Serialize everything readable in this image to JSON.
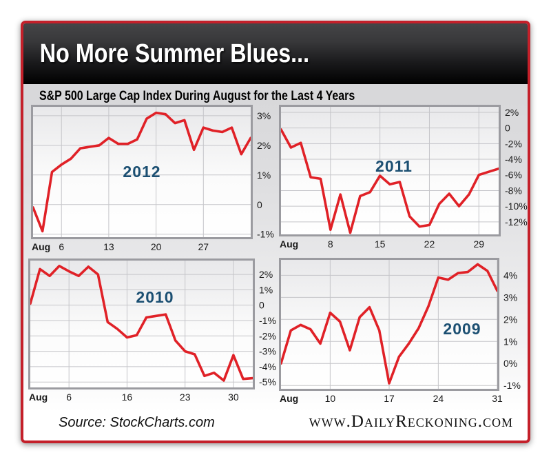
{
  "header": {
    "title": "No More Summer Blues..."
  },
  "subtitle": "S&P 500 Large Cap Index During August for the Last 4 Years",
  "footer": {
    "source_label": "Source: StockCharts.com",
    "site_label": "www.DailyReckoning.com"
  },
  "colors": {
    "accent_red": "#c4202a",
    "line_red": "#e02127",
    "year_label_blue": "#1b4f72",
    "grid": "#c5c5c9",
    "box_border": "#9b9ba0",
    "header_text": "#ffffff"
  },
  "chart_data": [
    {
      "type": "line",
      "title": "2012",
      "x_month_label": "Aug",
      "xticks": [
        {
          "label": "6",
          "index": 3
        },
        {
          "label": "13",
          "index": 8
        },
        {
          "label": "20",
          "index": 13
        },
        {
          "label": "27",
          "index": 18
        }
      ],
      "yticks": [
        {
          "label": "3%",
          "value": 3
        },
        {
          "label": "2%",
          "value": 2
        },
        {
          "label": "1%",
          "value": 1
        },
        {
          "label": "0",
          "value": 0
        },
        {
          "label": "-1%",
          "value": -1
        }
      ],
      "y_top": 3.3,
      "y_bottom": -1.1,
      "grid": true,
      "axis_side": "right",
      "values": [
        -0.1,
        -0.9,
        1.1,
        1.35,
        1.55,
        1.9,
        1.95,
        2.0,
        2.25,
        2.05,
        2.05,
        2.2,
        2.9,
        3.1,
        3.05,
        2.75,
        2.85,
        1.85,
        2.6,
        2.5,
        2.45,
        2.6,
        1.7,
        2.25
      ],
      "year_label_pos": {
        "x": 0.5,
        "y": 0.49
      }
    },
    {
      "type": "line",
      "title": "2011",
      "x_month_label": "Aug",
      "xticks": [
        {
          "label": "8",
          "index": 5
        },
        {
          "label": "15",
          "index": 10
        },
        {
          "label": "22",
          "index": 15
        },
        {
          "label": "29",
          "index": 20
        }
      ],
      "yticks": [
        {
          "label": "2%",
          "value": 2
        },
        {
          "label": "0",
          "value": 0
        },
        {
          "label": "-2%",
          "value": -2
        },
        {
          "label": "-4%",
          "value": -4
        },
        {
          "label": "-6%",
          "value": -6
        },
        {
          "label": "-8%",
          "value": -8
        },
        {
          "label": "-10%",
          "value": -10
        },
        {
          "label": "-12%",
          "value": -12
        }
      ],
      "y_top": 2.7,
      "y_bottom": -13.6,
      "grid": true,
      "axis_side": "right",
      "values": [
        -0.2,
        -2.5,
        -1.9,
        -6.3,
        -6.5,
        -13.0,
        -8.5,
        -13.4,
        -8.7,
        -8.2,
        -6.1,
        -7.2,
        -6.9,
        -11.3,
        -12.6,
        -12.4,
        -9.7,
        -8.4,
        -10.0,
        -8.5,
        -6.0,
        -5.6,
        -5.2
      ],
      "year_label_pos": {
        "x": 0.52,
        "y": 0.46
      }
    },
    {
      "type": "line",
      "title": "2010",
      "x_month_label": "Aug",
      "xticks": [
        {
          "label": "6",
          "index": 4
        },
        {
          "label": "16",
          "index": 10
        },
        {
          "label": "23",
          "index": 16
        },
        {
          "label": "30",
          "index": 21
        }
      ],
      "yticks": [
        {
          "label": "2%",
          "value": 2
        },
        {
          "label": "1%",
          "value": 1
        },
        {
          "label": "0",
          "value": 0
        },
        {
          "label": "-1%",
          "value": -1
        },
        {
          "label": "-2%",
          "value": -2
        },
        {
          "label": "-3%",
          "value": -3
        },
        {
          "label": "-4%",
          "value": -4
        },
        {
          "label": "-5%",
          "value": -5
        }
      ],
      "y_top": 2.9,
      "y_bottom": -5.35,
      "grid": true,
      "axis_side": "right",
      "values": [
        0.1,
        2.35,
        1.9,
        2.55,
        2.2,
        1.9,
        2.5,
        2.0,
        -1.1,
        -1.55,
        -2.1,
        -1.95,
        -0.8,
        -0.7,
        -0.6,
        -2.3,
        -3.0,
        -3.2,
        -4.6,
        -4.4,
        -4.9,
        -3.25,
        -4.8,
        -4.75
      ],
      "year_label_pos": {
        "x": 0.56,
        "y": 0.29
      }
    },
    {
      "type": "line",
      "title": "2009",
      "x_month_label": "Aug",
      "xticks": [
        {
          "label": "10",
          "index": 5
        },
        {
          "label": "17",
          "index": 11
        },
        {
          "label": "24",
          "index": 16
        },
        {
          "label": "31",
          "index": 22
        }
      ],
      "yticks": [
        {
          "label": "4%",
          "value": 4
        },
        {
          "label": "3%",
          "value": 3
        },
        {
          "label": "2%",
          "value": 2
        },
        {
          "label": "1%",
          "value": 1
        },
        {
          "label": "0%",
          "value": 0
        },
        {
          "label": "-1%",
          "value": -1
        }
      ],
      "y_top": 4.7,
      "y_bottom": -1.15,
      "grid": true,
      "axis_side": "right",
      "values": [
        0.0,
        1.5,
        1.75,
        1.55,
        0.9,
        2.3,
        1.9,
        0.6,
        2.1,
        2.55,
        1.5,
        -0.9,
        0.3,
        0.9,
        1.6,
        2.6,
        3.9,
        3.8,
        4.1,
        4.15,
        4.5,
        4.2,
        3.3
      ],
      "year_label_pos": {
        "x": 0.83,
        "y": 0.53
      }
    }
  ]
}
